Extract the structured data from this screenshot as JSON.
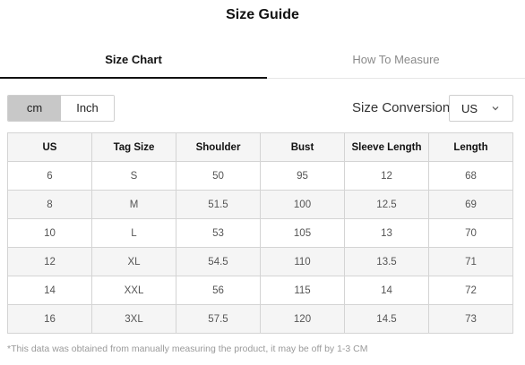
{
  "header": {
    "title": "Size Guide"
  },
  "tabs": [
    {
      "label": "Size Chart",
      "active": true
    },
    {
      "label": "How To Measure",
      "active": false
    }
  ],
  "units": {
    "options": [
      "cm",
      "Inch"
    ],
    "selected": "cm"
  },
  "conversion": {
    "label": "Size Conversion",
    "selected": "US",
    "icon": "chevron-down-icon"
  },
  "table": {
    "headers": [
      "US",
      "Tag Size",
      "Shoulder",
      "Bust",
      "Sleeve Length",
      "Length"
    ],
    "rows": [
      [
        "6",
        "S",
        "50",
        "95",
        "12",
        "68"
      ],
      [
        "8",
        "M",
        "51.5",
        "100",
        "12.5",
        "69"
      ],
      [
        "10",
        "L",
        "53",
        "105",
        "13",
        "70"
      ],
      [
        "12",
        "XL",
        "54.5",
        "110",
        "13.5",
        "71"
      ],
      [
        "14",
        "XXL",
        "56",
        "115",
        "14",
        "72"
      ],
      [
        "16",
        "3XL",
        "57.5",
        "120",
        "14.5",
        "73"
      ]
    ]
  },
  "footnote": "*This data was obtained from manually measuring the product, it may be off by 1-3 CM"
}
